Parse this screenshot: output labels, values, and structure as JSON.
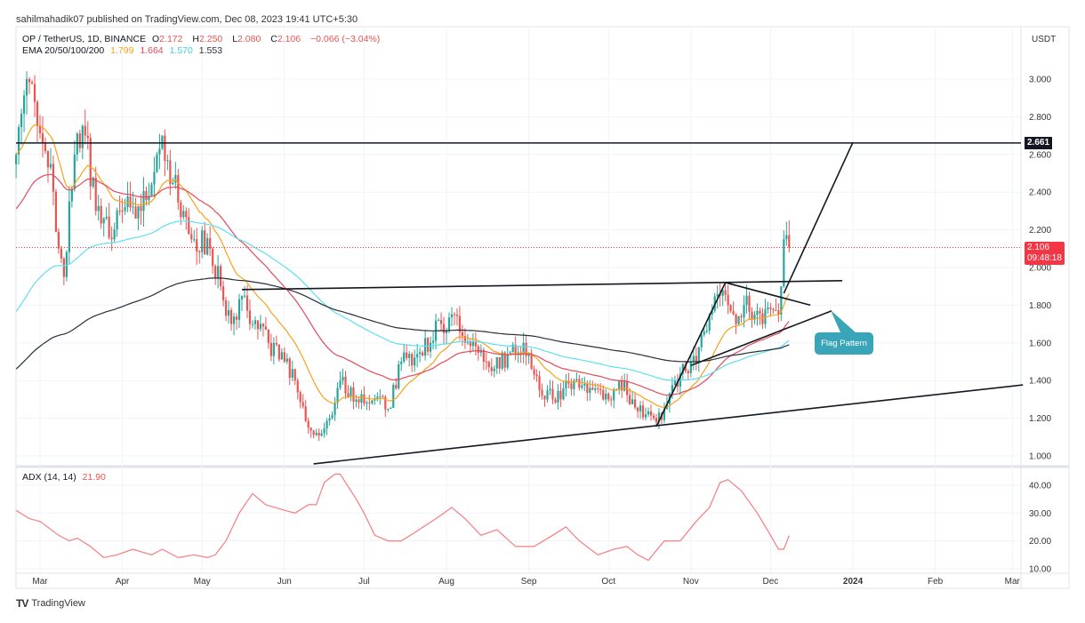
{
  "header": {
    "published": "sahilmahadik07 published on TradingView.com, Dec 08, 2023 19:41 UTC+5:30",
    "symbol": "OP / TetherUS, 1D, BINANCE",
    "open_label": "O",
    "open": "2.172",
    "high_label": "H",
    "high": "2.250",
    "low_label": "L",
    "low": "2.080",
    "close_label": "C",
    "close": "2.106",
    "change": "−0.066 (−3.04%)",
    "ema_label": "EMA 20/50/100/200",
    "ema20": "1.799",
    "ema50": "1.664",
    "ema100": "1.570",
    "ema200": "1.553"
  },
  "currency": "USDT",
  "price_tag": {
    "price": "2.106",
    "countdown": "09:48:18"
  },
  "level_tag": "2.661",
  "annotation": "Flag Pattern",
  "adx": {
    "label": "ADX (14, 14)",
    "value": "21.90"
  },
  "brand": "TradingView",
  "colors": {
    "up": "#26a69a",
    "down": "#ef5350",
    "ema20": "#f7a21b",
    "ema50": "#e5495a",
    "ema100": "#5ee0f0",
    "ema200": "#2a2e39",
    "adx": "#f77c80",
    "annotation": "#3aa5b8"
  },
  "chart_data": [
    {
      "type": "candlestick",
      "title": "OP / TetherUS, 1D, BINANCE",
      "ylim": [
        0.95,
        3.2
      ],
      "y_ticks": [
        "1.000",
        "1.200",
        "1.400",
        "1.600",
        "1.800",
        "2.000",
        "2.200",
        "2.400",
        "2.600",
        "2.800",
        "3.000"
      ],
      "x_ticks": [
        "Mar",
        "Apr",
        "May",
        "Jun",
        "Jul",
        "Aug",
        "Sep",
        "Oct",
        "Nov",
        "Dec",
        "2024",
        "Feb",
        "Mar"
      ],
      "x_tick_dates": [
        "2023-03-01",
        "2023-04-01",
        "2023-05-01",
        "2023-06-01",
        "2023-07-01",
        "2023-08-01",
        "2023-09-01",
        "2023-10-01",
        "2023-11-01",
        "2023-12-01",
        "2024-01-01",
        "2024-02-01",
        "2024-03-01"
      ],
      "grid": true,
      "last_candle": {
        "open": 2.172,
        "high": 2.25,
        "low": 2.08,
        "close": 2.106
      },
      "price_path": [
        [
          "2023-02-20",
          2.6
        ],
        [
          "2023-02-24",
          3.0
        ],
        [
          "2023-02-28",
          2.75
        ],
        [
          "2023-03-05",
          2.55
        ],
        [
          "2023-03-08",
          2.1
        ],
        [
          "2023-03-10",
          1.95
        ],
        [
          "2023-03-14",
          2.6
        ],
        [
          "2023-03-18",
          2.7
        ],
        [
          "2023-03-22",
          2.3
        ],
        [
          "2023-03-28",
          2.15
        ],
        [
          "2023-04-01",
          2.3
        ],
        [
          "2023-04-08",
          2.3
        ],
        [
          "2023-04-14",
          2.6
        ],
        [
          "2023-04-16",
          2.7
        ],
        [
          "2023-04-20",
          2.45
        ],
        [
          "2023-04-24",
          2.3
        ],
        [
          "2023-04-28",
          2.15
        ],
        [
          "2023-05-04",
          2.1
        ],
        [
          "2023-05-08",
          1.9
        ],
        [
          "2023-05-12",
          1.7
        ],
        [
          "2023-05-16",
          1.85
        ],
        [
          "2023-05-20",
          1.7
        ],
        [
          "2023-05-26",
          1.6
        ],
        [
          "2023-06-01",
          1.5
        ],
        [
          "2023-06-05",
          1.4
        ],
        [
          "2023-06-10",
          1.15
        ],
        [
          "2023-06-15",
          1.12
        ],
        [
          "2023-06-18",
          1.2
        ],
        [
          "2023-06-22",
          1.4
        ],
        [
          "2023-06-28",
          1.3
        ],
        [
          "2023-07-05",
          1.3
        ],
        [
          "2023-07-10",
          1.25
        ],
        [
          "2023-07-15",
          1.5
        ],
        [
          "2023-07-22",
          1.55
        ],
        [
          "2023-07-30",
          1.7
        ],
        [
          "2023-08-04",
          1.75
        ],
        [
          "2023-08-08",
          1.6
        ],
        [
          "2023-08-15",
          1.5
        ],
        [
          "2023-08-18",
          1.45
        ],
        [
          "2023-08-25",
          1.55
        ],
        [
          "2023-08-30",
          1.6
        ],
        [
          "2023-09-05",
          1.35
        ],
        [
          "2023-09-10",
          1.3
        ],
        [
          "2023-09-18",
          1.4
        ],
        [
          "2023-09-25",
          1.35
        ],
        [
          "2023-10-01",
          1.3
        ],
        [
          "2023-10-05",
          1.4
        ],
        [
          "2023-10-10",
          1.3
        ],
        [
          "2023-10-15",
          1.22
        ],
        [
          "2023-10-19",
          1.18
        ],
        [
          "2023-10-22",
          1.25
        ],
        [
          "2023-10-26",
          1.4
        ],
        [
          "2023-10-30",
          1.45
        ],
        [
          "2023-11-03",
          1.5
        ],
        [
          "2023-11-08",
          1.75
        ],
        [
          "2023-11-12",
          1.85
        ],
        [
          "2023-11-15",
          1.8
        ],
        [
          "2023-11-18",
          1.7
        ],
        [
          "2023-11-22",
          1.85
        ],
        [
          "2023-11-25",
          1.75
        ],
        [
          "2023-11-28",
          1.7
        ],
        [
          "2023-12-01",
          1.78
        ],
        [
          "2023-12-04",
          1.75
        ],
        [
          "2023-12-05",
          1.9
        ],
        [
          "2023-12-06",
          2.15
        ],
        [
          "2023-12-07",
          2.172
        ],
        [
          "2023-12-08",
          2.106
        ]
      ],
      "horizontal_level": 2.661,
      "current_price": 2.106,
      "trendlines": [
        {
          "from": [
            "2023-05-16",
            1.883
          ],
          "to": [
            "2023-12-28",
            1.93
          ]
        },
        {
          "from": [
            "2023-06-12",
            0.958
          ],
          "to": [
            "2024-03-05",
            1.377
          ]
        },
        {
          "from": [
            "2023-10-19",
            1.156
          ],
          "to": [
            "2023-11-14",
            1.92
          ]
        },
        {
          "from": [
            "2023-11-14",
            1.92
          ],
          "to": [
            "2023-12-16",
            1.8
          ]
        },
        {
          "from": [
            "2023-11-01",
            1.48
          ],
          "to": [
            "2023-12-24",
            1.77
          ]
        },
        {
          "from": [
            "2023-12-06",
            1.863
          ],
          "to": [
            "2024-01-01",
            2.665
          ]
        }
      ]
    },
    {
      "type": "line",
      "title": "ADX (14, 14)",
      "ylim": [
        8,
        45
      ],
      "y_ticks": [
        "10.00",
        "20.00",
        "30.00",
        "40.00"
      ],
      "series": [
        {
          "name": "ADX (14, 14)",
          "points": [
            [
              "2023-02-20",
              31
            ],
            [
              "2023-02-25",
              28
            ],
            [
              "2023-03-01",
              27
            ],
            [
              "2023-03-08",
              22
            ],
            [
              "2023-03-12",
              20
            ],
            [
              "2023-03-15",
              21
            ],
            [
              "2023-03-20",
              18
            ],
            [
              "2023-03-25",
              14
            ],
            [
              "2023-03-30",
              15
            ],
            [
              "2023-04-05",
              17
            ],
            [
              "2023-04-12",
              15
            ],
            [
              "2023-04-16",
              17
            ],
            [
              "2023-04-22",
              14
            ],
            [
              "2023-04-28",
              15
            ],
            [
              "2023-05-03",
              14
            ],
            [
              "2023-05-06",
              15
            ],
            [
              "2023-05-10",
              20
            ],
            [
              "2023-05-15",
              30
            ],
            [
              "2023-05-20",
              37
            ],
            [
              "2023-05-25",
              33
            ],
            [
              "2023-06-01",
              31
            ],
            [
              "2023-06-05",
              30
            ],
            [
              "2023-06-10",
              33
            ],
            [
              "2023-06-13",
              33
            ],
            [
              "2023-06-16",
              41
            ],
            [
              "2023-06-20",
              44
            ],
            [
              "2023-06-22",
              44
            ],
            [
              "2023-06-28",
              35
            ],
            [
              "2023-07-01",
              30
            ],
            [
              "2023-07-05",
              22
            ],
            [
              "2023-07-10",
              20
            ],
            [
              "2023-07-15",
              20
            ],
            [
              "2023-07-20",
              23
            ],
            [
              "2023-07-28",
              28
            ],
            [
              "2023-08-03",
              32
            ],
            [
              "2023-08-08",
              28
            ],
            [
              "2023-08-14",
              22
            ],
            [
              "2023-08-20",
              24
            ],
            [
              "2023-08-27",
              18
            ],
            [
              "2023-09-03",
              18
            ],
            [
              "2023-09-10",
              22
            ],
            [
              "2023-09-15",
              25
            ],
            [
              "2023-09-20",
              20
            ],
            [
              "2023-09-27",
              15
            ],
            [
              "2023-10-03",
              17
            ],
            [
              "2023-10-08",
              18
            ],
            [
              "2023-10-12",
              15
            ],
            [
              "2023-10-16",
              13
            ],
            [
              "2023-10-22",
              20
            ],
            [
              "2023-10-28",
              20
            ],
            [
              "2023-11-03",
              27
            ],
            [
              "2023-11-08",
              32
            ],
            [
              "2023-11-12",
              41
            ],
            [
              "2023-11-15",
              42
            ],
            [
              "2023-11-20",
              38
            ],
            [
              "2023-11-26",
              30
            ],
            [
              "2023-12-01",
              22
            ],
            [
              "2023-12-04",
              17
            ],
            [
              "2023-12-06",
              17
            ],
            [
              "2023-12-08",
              21.9
            ]
          ]
        }
      ]
    }
  ]
}
